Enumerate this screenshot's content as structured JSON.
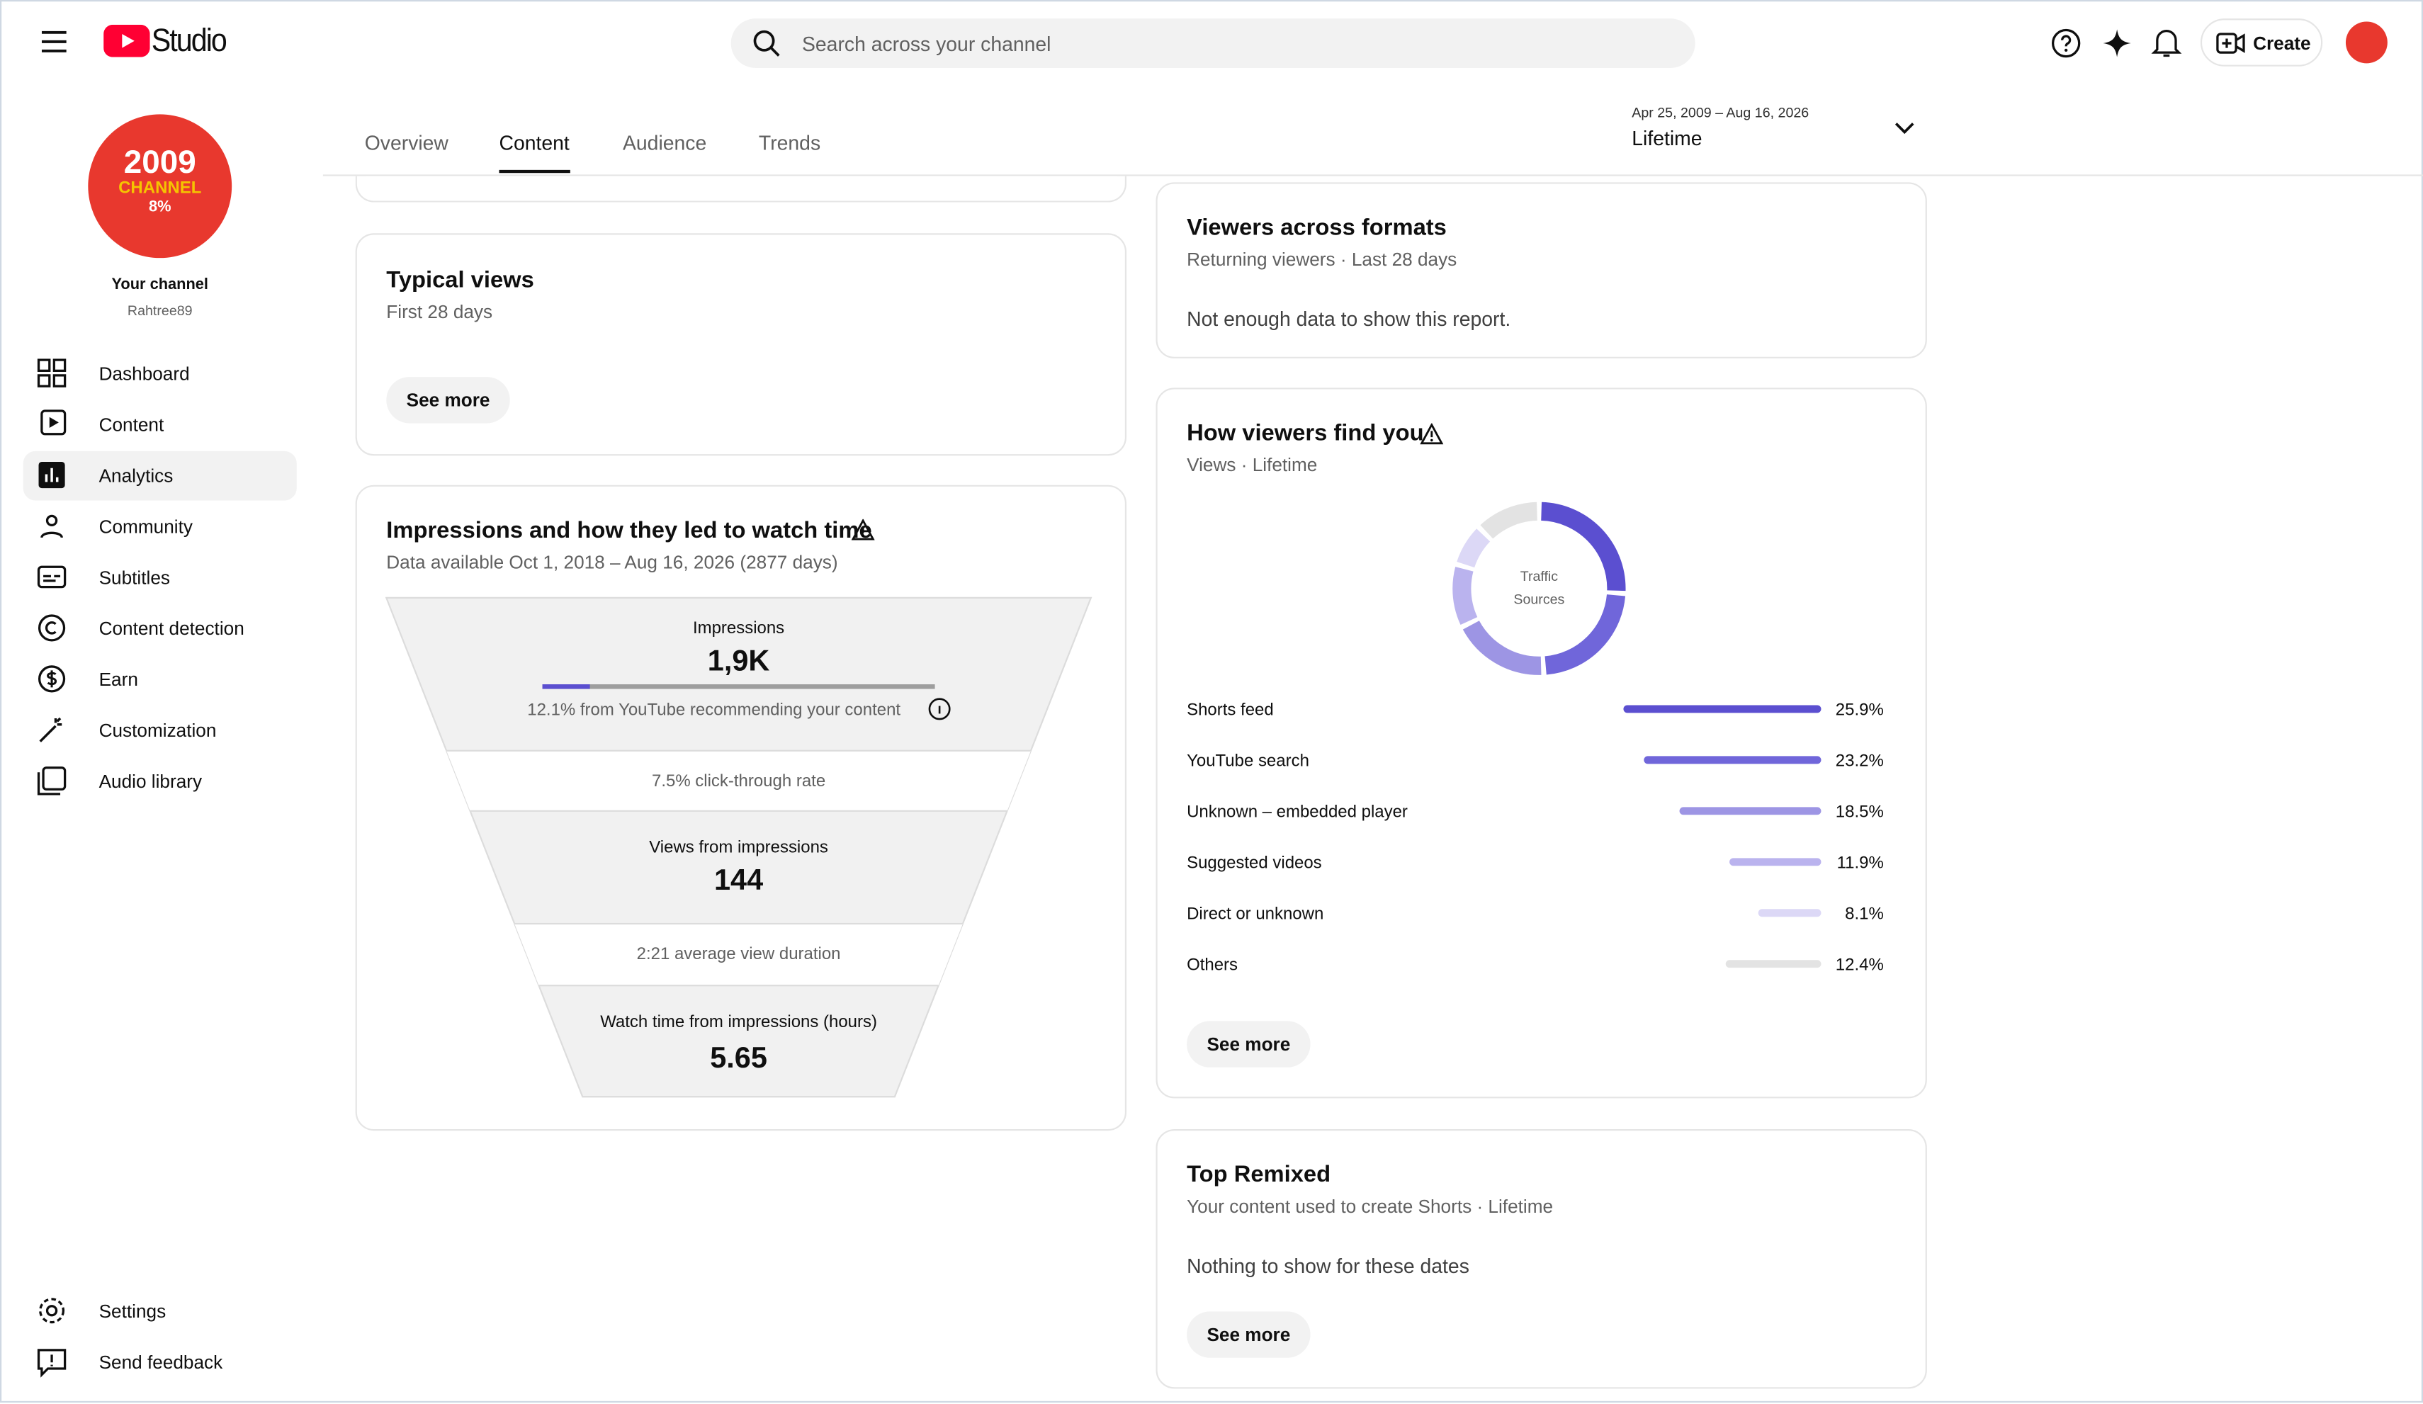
{
  "header": {
    "logo": "Studio",
    "search_placeholder": "Search across your channel",
    "create": "Create"
  },
  "sidebar": {
    "avatar_text": [
      "2009",
      "CHANNEL",
      "8%"
    ],
    "channel_label": "Your channel",
    "channel_name": "Rahtree89",
    "nav": [
      "Dashboard",
      "Content",
      "Analytics",
      "Community",
      "Subtitles",
      "Content detection",
      "Earn",
      "Customization",
      "Audio library"
    ],
    "footer_nav": [
      "Settings",
      "Send feedback"
    ]
  },
  "tabs": [
    "Overview",
    "Content",
    "Audience",
    "Trends"
  ],
  "date_range": {
    "dates": "Apr 25, 2009 – Aug 16, 2026",
    "label": "Lifetime"
  },
  "typical_views": {
    "title": "Typical views",
    "subtitle": "First 28 days",
    "button": "See more"
  },
  "impressions": {
    "title": "Impressions and how they led to watch time",
    "subtitle": "Data available Oct 1, 2018 – Aug 16, 2026 (2877 days)",
    "funnel": {
      "impressions_label": "Impressions",
      "impressions_value": "1,9K",
      "recommended_share": 12.1,
      "recommended_text": "12.1% from YouTube recommending your content",
      "ctr": "7.5% click-through rate",
      "views_label": "Views from impressions",
      "views_value": 144,
      "avg_duration": "2:21 average view duration",
      "watch_label": "Watch time from impressions (hours)",
      "watch_value": 5.65
    }
  },
  "viewers_formats": {
    "title": "Viewers across formats",
    "subtitle": "Returning viewers · Last 28 days",
    "message": "Not enough data to show this report."
  },
  "find_you": {
    "title": "How viewers find you",
    "subtitle": "Views · Lifetime",
    "center_label": [
      "Traffic",
      "Sources"
    ],
    "sources": {
      "names": [
        "Shorts feed",
        "YouTube search",
        "Unknown – embedded player",
        "Suggested videos",
        "Direct or unknown",
        "Others"
      ],
      "values": [
        25.9,
        23.2,
        18.5,
        11.9,
        8.1,
        12.4
      ],
      "value_labels": [
        "25.9%",
        "23.2%",
        "18.5%",
        "11.9%",
        "8.1%",
        "12.4%"
      ],
      "colors": [
        "#5b4fd0",
        "#7066da",
        "#9d95e4",
        "#bab3ee",
        "#dcd8f6",
        "#e3e3e3"
      ]
    },
    "button": "See more"
  },
  "top_remixed": {
    "title": "Top Remixed",
    "subtitle": "Your content used to create Shorts · Lifetime",
    "message": "Nothing to show for these dates",
    "button": "See more"
  }
}
